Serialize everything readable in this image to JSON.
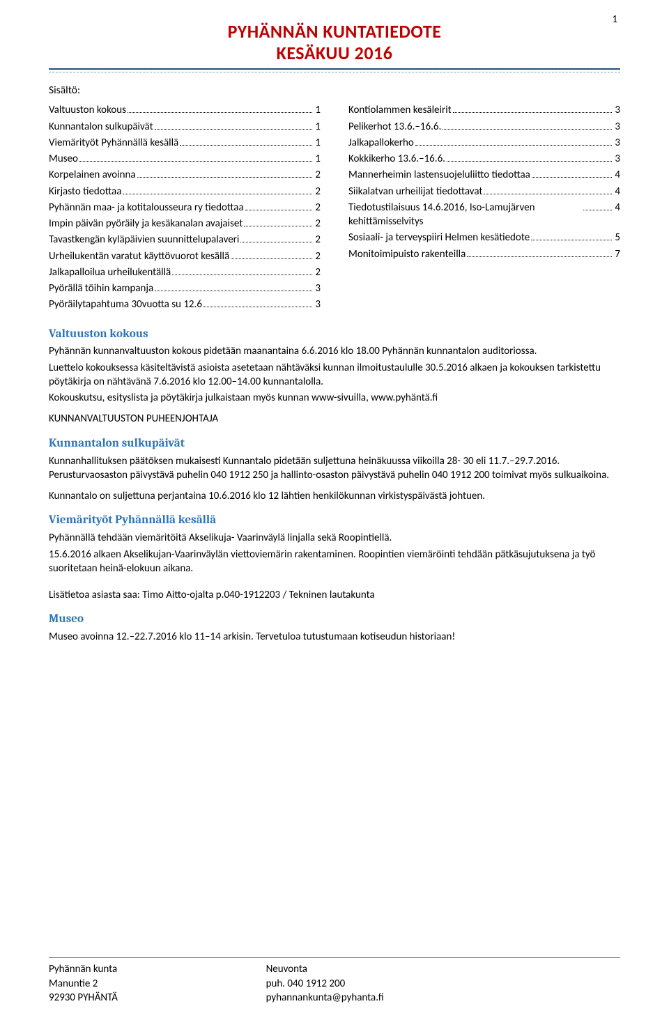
{
  "page_number": "1",
  "header": {
    "title_line1": "PYHÄNNÄN KUNTATIEDOTE",
    "title_line2": "KESÄKUU 2016",
    "title_color": "#c00000",
    "rule_color_thick": "#1f4e79",
    "rule_color_thin": "#7f9db9"
  },
  "toc_label": "Sisältö:",
  "toc_left": [
    {
      "label": "Valtuuston kokous",
      "page": "1"
    },
    {
      "label": "Kunnantalon sulkupäivät",
      "page": "1"
    },
    {
      "label": "Viemärityöt Pyhännällä kesällä",
      "page": "1"
    },
    {
      "label": "Museo",
      "page": "1"
    },
    {
      "label": "Korpelainen avoinna",
      "page": "2"
    },
    {
      "label": "Kirjasto tiedottaa",
      "page": "2"
    },
    {
      "label": "Pyhännän maa- ja kotitalousseura ry tiedottaa",
      "page": "2"
    },
    {
      "label": "Impin päivän pyöräily ja kesäkanalan avajaiset",
      "page": "2"
    },
    {
      "label": "Tavastkengän kyläpäivien suunnittelupalaveri",
      "page": "2"
    },
    {
      "label": "Urheilukentän varatut käyttövuorot kesällä",
      "page": "2"
    },
    {
      "label": "Jalkapalloilua urheilukentällä",
      "page": "2"
    },
    {
      "label": "Pyörällä töihin kampanja",
      "page": "3"
    },
    {
      "label": "Pyöräilytapahtuma 30vuotta su 12.6",
      "page": "3"
    }
  ],
  "toc_right": [
    {
      "label": "Kontiolammen kesäleirit",
      "page": "3"
    },
    {
      "label": "Pelikerhot 13.6.–16.6.",
      "page": "3"
    },
    {
      "label": "Jalkapallokerho",
      "page": "3"
    },
    {
      "label": "Kokkikerho 13.6.–16.6.",
      "page": "3"
    },
    {
      "label": "Mannerheimin lastensuojeluliitto tiedottaa",
      "page": "4"
    },
    {
      "label": "Siikalatvan urheilijat tiedottavat",
      "page": "4"
    },
    {
      "label": "Tiedotustilaisuus 14.6.2016, Iso-Lamujärven kehittämisselvitys",
      "page": "4",
      "multi": true
    },
    {
      "label": "Sosiaali- ja terveyspiiri Helmen kesätiedote",
      "page": "5"
    },
    {
      "label": "Monitoimipuisto rakenteilla",
      "page": "7"
    }
  ],
  "sections": {
    "valtuuston": {
      "title": "Valtuuston kokous",
      "p1": "Pyhännän kunnanvaltuuston kokous pidetään maanantaina 6.6.2016 klo 18.00 Pyhännän kunnantalon auditoriossa.",
      "p2": "Luettelo kokouksessa käsiteltävistä asioista asetetaan nähtäväksi kunnan ilmoitustaululle 30.5.2016 alkaen ja kokouksen tarkistettu pöytäkirja on nähtävänä 7.6.2016 klo 12.00–14.00 kunnantalolla.",
      "p3": "Kokouskutsu, esityslista ja pöytäkirja julkaistaan myös kunnan www-sivuilla, www.pyhäntä.fi",
      "signoff": "KUNNANVALTUUSTON PUHEENJOHTAJA"
    },
    "sulkupaivat": {
      "title": "Kunnantalon sulkupäivät",
      "p1": "Kunnanhallituksen päätöksen mukaisesti Kunnantalo pidetään suljettuna heinäkuussa viikoilla 28- 30 eli 11.7.–29.7.2016. Perusturvaosaston päivystävä puhelin 040 1912 250 ja hallinto-osaston päivystävä puhelin 040 1912 200 toimivat myös sulkuaikoina.",
      "p2": "Kunnantalo on suljettuna perjantaina 10.6.2016 klo 12 lähtien henkilökunnan virkistyspäivästä johtuen."
    },
    "viemari": {
      "title": "Viemärityöt Pyhännällä kesällä",
      "p1": "Pyhännällä tehdään viemäritöitä Akselikuja- Vaarinväylä linjalla sekä Roopintiellä.",
      "p2": "15.6.2016 alkaen Akselikujan-Vaarinväylän viettoviemärin rakentaminen. Roopintien viemäröinti tehdään pätkäsujutuksena ja työ suoritetaan heinä-elokuun aikana.",
      "p3": "Lisätietoa asiasta saa: Timo Aitto-ojalta p.040-1912203 / Tekninen lautakunta"
    },
    "museo": {
      "title": "Museo",
      "p1": "Museo avoinna 12.–22.7.2016 klo 11–14 arkisin. Tervetuloa tutustumaan kotiseudun historiaan!"
    }
  },
  "footer": {
    "left": [
      "Pyhännän kunta",
      "Manuntie 2",
      "92930 PYHÄNTÄ"
    ],
    "center": [
      "Neuvonta",
      "puh. 040 1912 200",
      "pyhannankunta@pyhanta.fi"
    ]
  },
  "colors": {
    "heading": "#2e74b5",
    "body": "#000000",
    "footer_rule": "#808080"
  }
}
